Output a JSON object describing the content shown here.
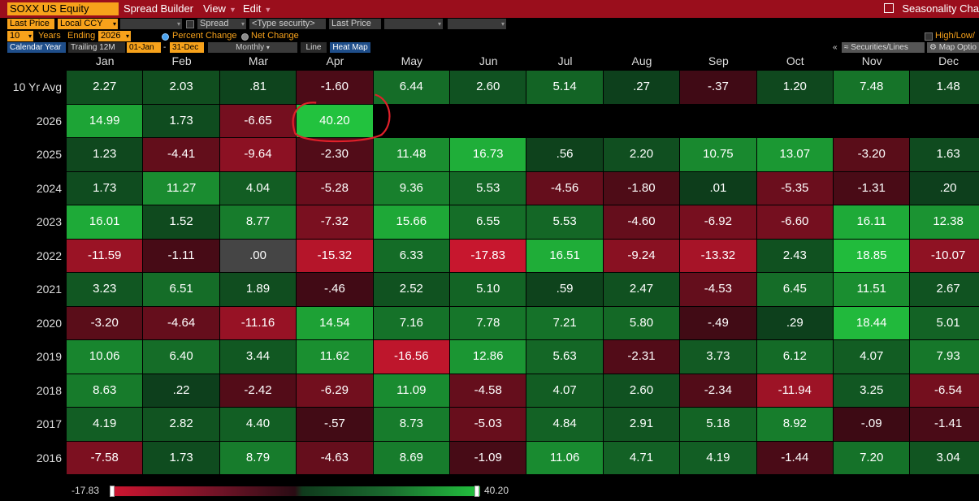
{
  "toolbar": {
    "security": "SOXX US Equity",
    "menu": [
      "Spread Builder",
      "View",
      "Edit"
    ],
    "right_title": "Seasonality Cha"
  },
  "controls": {
    "field": "Last Price",
    "currency": "Local CCY",
    "spread": "Spread",
    "security_placeholder": "<Type security>",
    "field2": "Last Price",
    "years": "10",
    "years_label": "Years",
    "ending_label": "Ending",
    "ending_year": "2026",
    "percent_change": "Percent Change",
    "net_change": "Net Change",
    "high_low": "High/Low/",
    "calendar_year": "Calendar Year",
    "trailing": "Trailing 12M",
    "from": "01-Jan",
    "dash": "-",
    "to": "31-Dec",
    "frequency": "Monthly",
    "line": "Line",
    "heat_map": "Heat Map",
    "collapse": "«",
    "securities_lines": "Securities/Lines",
    "map_options": "Map Optio"
  },
  "heatmap": {
    "months": [
      "Jan",
      "Feb",
      "Mar",
      "Apr",
      "May",
      "Jun",
      "Jul",
      "Aug",
      "Sep",
      "Oct",
      "Nov",
      "Dec"
    ],
    "rows": [
      {
        "label": "10 Yr Avg",
        "values": [
          "2.27",
          "2.03",
          ".81",
          "-1.60",
          "6.44",
          "2.60",
          "5.14",
          ".27",
          "-.37",
          "1.20",
          "7.48",
          "1.48"
        ]
      },
      {
        "label": "2026",
        "values": [
          "14.99",
          "1.73",
          "-6.65",
          "40.20",
          "",
          "",
          "",
          "",
          "",
          "",
          "",
          ""
        ]
      },
      {
        "label": "2025",
        "values": [
          "1.23",
          "-4.41",
          "-9.64",
          "-2.30",
          "11.48",
          "16.73",
          ".56",
          "2.20",
          "10.75",
          "13.07",
          "-3.20",
          "1.63"
        ]
      },
      {
        "label": "2024",
        "values": [
          "1.73",
          "11.27",
          "4.04",
          "-5.28",
          "9.36",
          "5.53",
          "-4.56",
          "-1.80",
          ".01",
          "-5.35",
          "-1.31",
          ".20"
        ]
      },
      {
        "label": "2023",
        "values": [
          "16.01",
          "1.52",
          "8.77",
          "-7.32",
          "15.66",
          "6.55",
          "5.53",
          "-4.60",
          "-6.92",
          "-6.60",
          "16.11",
          "12.38"
        ]
      },
      {
        "label": "2022",
        "values": [
          "-11.59",
          "-1.11",
          ".00",
          "-15.32",
          "6.33",
          "-17.83",
          "16.51",
          "-9.24",
          "-13.32",
          "2.43",
          "18.85",
          "-10.07"
        ]
      },
      {
        "label": "2021",
        "values": [
          "3.23",
          "6.51",
          "1.89",
          "-.46",
          "2.52",
          "5.10",
          ".59",
          "2.47",
          "-4.53",
          "6.45",
          "11.51",
          "2.67"
        ]
      },
      {
        "label": "2020",
        "values": [
          "-3.20",
          "-4.64",
          "-11.16",
          "14.54",
          "7.16",
          "7.78",
          "7.21",
          "5.80",
          "-.49",
          ".29",
          "18.44",
          "5.01"
        ]
      },
      {
        "label": "2019",
        "values": [
          "10.06",
          "6.40",
          "3.44",
          "11.62",
          "-16.56",
          "12.86",
          "5.63",
          "-2.31",
          "3.73",
          "6.12",
          "4.07",
          "7.93"
        ]
      },
      {
        "label": "2018",
        "values": [
          "8.63",
          ".22",
          "-2.42",
          "-6.29",
          "11.09",
          "-4.58",
          "4.07",
          "2.60",
          "-2.34",
          "-11.94",
          "3.25",
          "-6.54"
        ]
      },
      {
        "label": "2017",
        "values": [
          "4.19",
          "2.82",
          "4.40",
          "-.57",
          "8.73",
          "-5.03",
          "4.84",
          "2.91",
          "5.18",
          "8.92",
          "-.09",
          "-1.41"
        ]
      },
      {
        "label": "2016",
        "values": [
          "-7.58",
          "1.73",
          "8.79",
          "-4.63",
          "8.69",
          "-1.09",
          "11.06",
          "4.71",
          "4.19",
          "-1.44",
          "7.20",
          "3.04"
        ]
      }
    ],
    "highlight": {
      "row": 1,
      "col": 3
    },
    "highlight_color": "#e0202a"
  },
  "legend": {
    "min": "-17.83",
    "max": "40.20"
  },
  "colors": {
    "pos_dark": "#0d3d1b",
    "pos_bright": "#22c23e",
    "neg_dark": "#3c0a14",
    "neg_bright": "#c8172e",
    "zero": "#454545",
    "accent": "#f7a21b",
    "menu_bar": "#9a0e1c"
  }
}
